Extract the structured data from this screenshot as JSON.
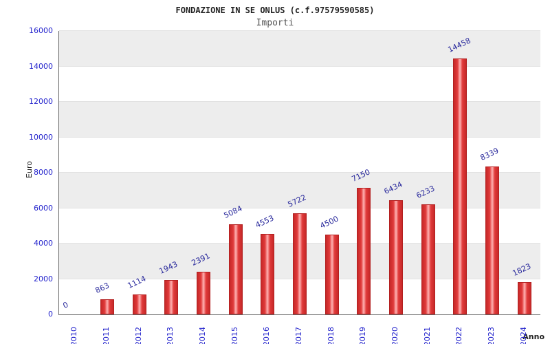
{
  "chart_data": {
    "type": "bar",
    "title": "FONDAZIONE IN SE ONLUS (c.f.97579590585)",
    "subtitle": "Importi",
    "xlabel": "Anno",
    "ylabel": "Euro",
    "categories": [
      "2010",
      "2011",
      "2012",
      "2013",
      "2014",
      "2015",
      "2016",
      "2017",
      "2018",
      "2019",
      "2020",
      "2021",
      "2022",
      "2023",
      "2024"
    ],
    "values": [
      0,
      863,
      1114,
      1943,
      2391,
      5084,
      4553,
      5722,
      4500,
      7150,
      6434,
      6233,
      14458,
      8339,
      1823
    ],
    "ylim": [
      0,
      16000
    ],
    "ytick_step": 2000,
    "legend": "none",
    "grid": "horizontal-bands",
    "colors": {
      "bar_fill": "#e03a3a",
      "bar_highlight": "#ffb3b3",
      "bar_edge": "#c62828",
      "value_label": "#27279b",
      "axis_tick_text": "#2222cc",
      "band_light": "#ffffff",
      "band_dark": "#ededed"
    }
  }
}
